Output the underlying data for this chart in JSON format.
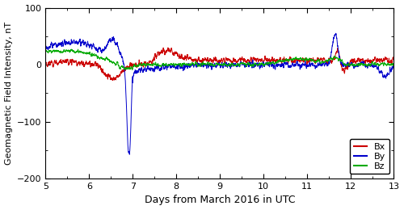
{
  "title": "",
  "xlabel": "Days from March 2016 in UTC",
  "ylabel": "Geomagnetic Field Intensity, nT",
  "xlim": [
    5,
    13
  ],
  "ylim": [
    -200,
    100
  ],
  "yticks": [
    -200,
    -100,
    0,
    100
  ],
  "xticks": [
    5,
    6,
    7,
    8,
    9,
    10,
    11,
    12,
    13
  ],
  "legend_labels": [
    "Bx",
    "By",
    "Bz"
  ],
  "legend_colors": [
    "#cc0000",
    "#0000cc",
    "#00aa00"
  ],
  "line_width": 0.7,
  "background_color": "#ffffff",
  "seed": 17
}
